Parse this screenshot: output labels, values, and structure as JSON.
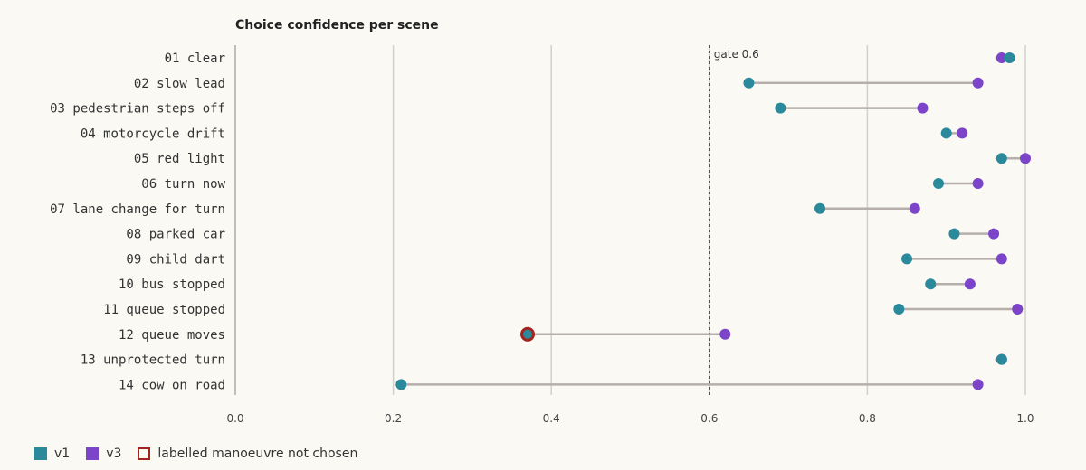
{
  "chart_data": {
    "type": "dumbbell",
    "title": "Choice confidence per scene",
    "xlim": [
      0.0,
      1.0
    ],
    "xticks": [
      "0.0",
      "0.2",
      "0.4",
      "0.6",
      "0.8",
      "1.0"
    ],
    "gate": {
      "value": 0.6,
      "label": "gate 0.6"
    },
    "categories": [
      "01 clear",
      "02 slow lead",
      "03 pedestrian steps off",
      "04 motorcycle drift",
      "05 red light",
      "06 turn now",
      "07 lane change for turn",
      "08 parked car",
      "09 child dart",
      "10 bus stopped",
      "11 queue stopped",
      "12 queue moves",
      "13 unprotected turn",
      "14 cow on road"
    ],
    "series": [
      {
        "name": "v1",
        "color": "#2a8a9c",
        "values": [
          0.98,
          0.65,
          0.69,
          0.9,
          0.97,
          0.89,
          0.74,
          0.91,
          0.85,
          0.88,
          0.84,
          0.37,
          0.97,
          0.21
        ]
      },
      {
        "name": "v3",
        "color": "#7b44c9",
        "values": [
          0.97,
          0.94,
          0.87,
          0.92,
          1.0,
          0.94,
          0.86,
          0.96,
          0.97,
          0.93,
          0.99,
          0.62,
          0.97,
          0.94
        ]
      }
    ],
    "not_chosen": [
      {
        "category_index": 11,
        "series": "v1"
      }
    ],
    "legend": {
      "placement": "bottom-left",
      "items": [
        {
          "label": "v1",
          "color": "#2a8a9c",
          "style": "filled"
        },
        {
          "label": "v3",
          "color": "#7b44c9",
          "style": "filled"
        },
        {
          "label": "labelled manoeuvre not chosen",
          "color": "#a3231f",
          "style": "outline"
        }
      ]
    },
    "grid": true
  }
}
